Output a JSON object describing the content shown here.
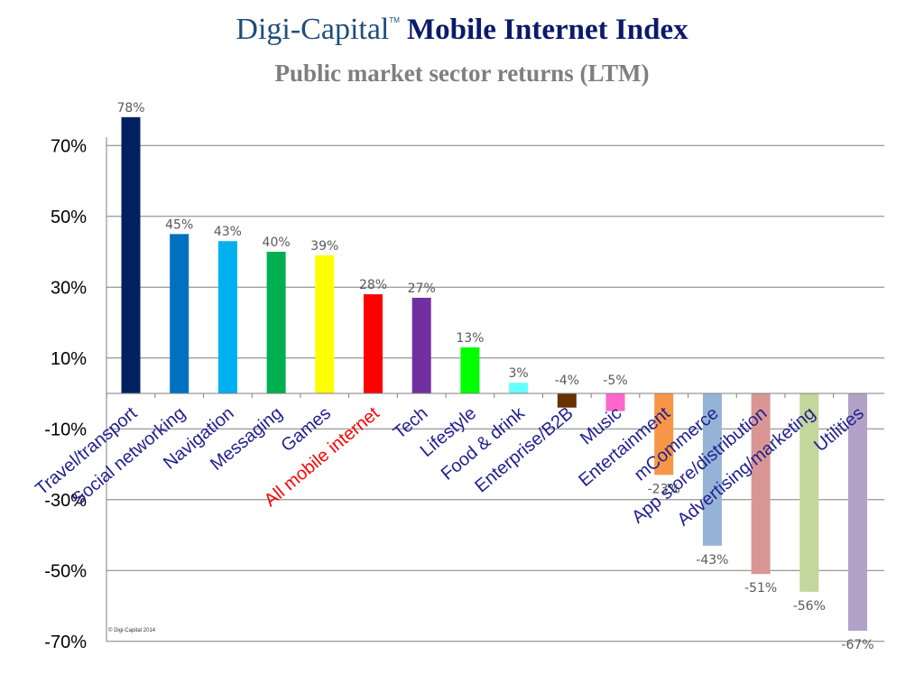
{
  "header": {
    "brand": "Digi-Capital",
    "trademark": "TM",
    "title": "Mobile Internet Index"
  },
  "footer": {
    "copyright": "© Digi-Capital 2014"
  },
  "chart_data": {
    "type": "bar",
    "title": "Public market sector returns (LTM)",
    "xlabel": "",
    "ylabel": "",
    "ylim": [
      -70,
      80
    ],
    "yticks": [
      70,
      50,
      30,
      10,
      -10,
      -30,
      -50,
      -70
    ],
    "ytick_labels": [
      "70%",
      "50%",
      "30%",
      "10%",
      "-10%",
      "-30%",
      "-50%",
      "-70%"
    ],
    "grid": true,
    "legend": "none",
    "categories": [
      "Travel/transport",
      "Social networking",
      "Navigation",
      "Messaging",
      "Games",
      "All mobile internet",
      "Tech",
      "Lifestyle",
      "Food & drink",
      "Enterprise/B2B",
      "Music",
      "Entertainment",
      "mCommerce",
      "App store/distribution",
      "Advertising/marketing",
      "Utilities"
    ],
    "values": [
      78,
      45,
      43,
      40,
      39,
      28,
      27,
      13,
      3,
      -4,
      -5,
      -23,
      -43,
      -51,
      -56,
      -67
    ],
    "value_labels": [
      "78%",
      "45%",
      "43%",
      "40%",
      "39%",
      "28%",
      "27%",
      "13%",
      "3%",
      "-4%",
      "-5%",
      "-23%",
      "-43%",
      "-51%",
      "-56%",
      "-67%"
    ],
    "colors": [
      "#002060",
      "#0070c0",
      "#00b0f0",
      "#00b050",
      "#ffff00",
      "#ff0000",
      "#7030a0",
      "#00ff00",
      "#66ffff",
      "#663300",
      "#ff66cc",
      "#f79646",
      "#95b3d7",
      "#d99694",
      "#c3d69b",
      "#b3a2c7"
    ],
    "label_colors": [
      "#1f1f8f",
      "#1f1f8f",
      "#1f1f8f",
      "#1f1f8f",
      "#1f1f8f",
      "#ff0000",
      "#1f1f8f",
      "#1f1f8f",
      "#1f1f8f",
      "#1f1f8f",
      "#1f1f8f",
      "#1f1f8f",
      "#1f1f8f",
      "#1f1f8f",
      "#1f1f8f",
      "#1f1f8f"
    ]
  }
}
